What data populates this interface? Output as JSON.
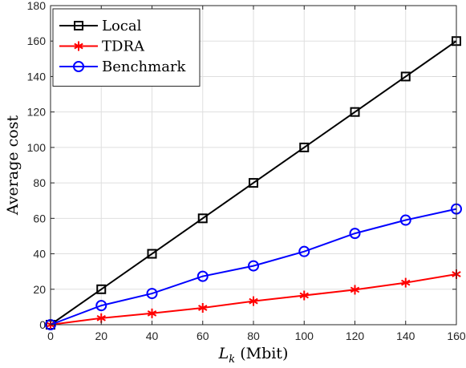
{
  "chart_data": {
    "type": "line",
    "xlabel_main": "L",
    "xlabel_sub": "k",
    "xlabel_unit": " (Mbit)",
    "ylabel": "Average cost",
    "x": [
      0,
      20,
      40,
      60,
      80,
      100,
      120,
      140,
      160
    ],
    "xlim": [
      0,
      160
    ],
    "ylim": [
      0,
      180
    ],
    "xticks": [
      0,
      20,
      40,
      60,
      80,
      100,
      120,
      140,
      160
    ],
    "yticks": [
      0,
      20,
      40,
      60,
      80,
      100,
      120,
      140,
      160,
      180
    ],
    "grid": true,
    "legend_position": "top-left",
    "series": [
      {
        "name": "Local",
        "color": "#000000",
        "marker": "square",
        "values": [
          0,
          20,
          40,
          60,
          80,
          100,
          120,
          140,
          160
        ]
      },
      {
        "name": "TDRA",
        "color": "#ff0000",
        "marker": "star",
        "values": [
          0,
          3.7,
          6.4,
          9.5,
          13.3,
          16.5,
          19.7,
          23.7,
          28.5
        ]
      },
      {
        "name": "Benchmark",
        "color": "#0000ff",
        "marker": "circle",
        "values": [
          0,
          10.8,
          17.6,
          27.3,
          33.2,
          41.3,
          51.5,
          59,
          65.3
        ]
      }
    ]
  }
}
